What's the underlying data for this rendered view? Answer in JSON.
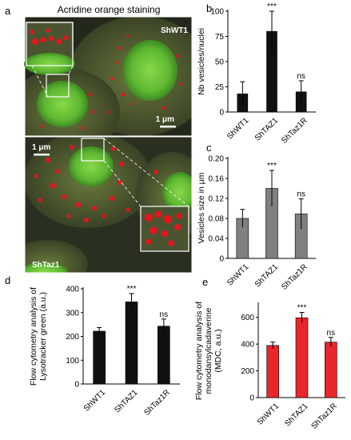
{
  "panel_a": {
    "letter": "a",
    "title": "Acridine orange staining",
    "top_label": "ShWT1",
    "bottom_label": "ShTaz1",
    "scale_top": "1 μm",
    "scale_bottom": "1 μm",
    "colors": {
      "nucleus": "#6ac43a",
      "cytoplasm": "#5d6a3a",
      "vesicle": "#e8141c",
      "background": "#1a1f14"
    }
  },
  "chart_data": [
    {
      "id": "b",
      "letter": "b",
      "type": "bar",
      "categories": [
        "ShWT1",
        "ShTAZ1",
        "ShTaz1R"
      ],
      "values": [
        18,
        80,
        20
      ],
      "errors": [
        12,
        20,
        11
      ],
      "annotations": [
        "",
        "***",
        "ns"
      ],
      "ylabel": "Nb vesicles/nuclei",
      "ylim": [
        0,
        100
      ],
      "yticks": [
        "0",
        "25",
        "50",
        "75",
        "100"
      ],
      "color": "#111111"
    },
    {
      "id": "c",
      "letter": "c",
      "type": "bar",
      "categories": [
        "ShWT1",
        "ShTAZ1",
        "ShTaz1R"
      ],
      "values": [
        0.08,
        0.14,
        0.089
      ],
      "errors": [
        0.018,
        0.036,
        0.03
      ],
      "annotations": [
        "",
        "***",
        "ns"
      ],
      "ylabel": "Vesicles size in μm",
      "ylim": [
        0,
        0.2
      ],
      "yticks": [
        "0",
        "0.04",
        "0.08",
        "0.12",
        "0.16",
        "0.20"
      ],
      "color": "#808080"
    },
    {
      "id": "d",
      "letter": "d",
      "type": "bar",
      "categories": [
        "ShWT1",
        "ShTAZ1",
        "ShTaz1R"
      ],
      "values": [
        222,
        345,
        243
      ],
      "errors": [
        15,
        35,
        30
      ],
      "annotations": [
        "",
        "***",
        "ns"
      ],
      "ylabel_lines": [
        "Flow cytometry analysis of",
        "Lysotracker green (a.u.)"
      ],
      "ylim": [
        0,
        400
      ],
      "yticks": [
        "0",
        "100",
        "200",
        "300",
        "400"
      ],
      "color": "#111111"
    },
    {
      "id": "e",
      "letter": "e",
      "type": "bar",
      "categories": [
        "ShWT1",
        "ShTAZ1",
        "ShTaz1R"
      ],
      "values": [
        390,
        597,
        415
      ],
      "errors": [
        25,
        40,
        35
      ],
      "annotations": [
        "",
        "***",
        "ns"
      ],
      "ylabel_lines": [
        "Flow cytometry analysis of",
        "monodansylcadaverine",
        "(MDC, a.u.)"
      ],
      "ylim": [
        0,
        700
      ],
      "yticks": [
        "0",
        "200",
        "400",
        "600"
      ],
      "ytick_values": [
        0,
        200,
        400,
        600
      ],
      "color": "#e8262c"
    }
  ]
}
